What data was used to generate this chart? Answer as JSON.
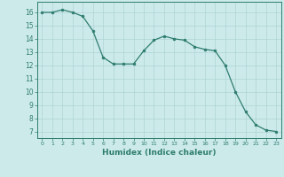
{
  "x": [
    0,
    1,
    2,
    3,
    4,
    5,
    6,
    7,
    8,
    9,
    10,
    11,
    12,
    13,
    14,
    15,
    16,
    17,
    18,
    19,
    20,
    21,
    22,
    23
  ],
  "y": [
    16.0,
    16.0,
    16.2,
    16.0,
    15.7,
    14.6,
    12.6,
    12.1,
    12.1,
    12.1,
    13.1,
    13.9,
    14.2,
    14.0,
    13.9,
    13.4,
    13.2,
    13.1,
    12.0,
    10.0,
    8.5,
    7.5,
    7.1,
    7.0
  ],
  "line_color": "#2e7d6e",
  "marker": "o",
  "marker_size": 2.0,
  "bg_color": "#cceaea",
  "grid_color": "#aed4d4",
  "xlabel": "Humidex (Indice chaleur)",
  "xlim": [
    -0.5,
    23.5
  ],
  "ylim": [
    6.5,
    16.8
  ],
  "yticks": [
    7,
    8,
    9,
    10,
    11,
    12,
    13,
    14,
    15,
    16
  ],
  "xticks": [
    0,
    1,
    2,
    3,
    4,
    5,
    6,
    7,
    8,
    9,
    10,
    11,
    12,
    13,
    14,
    15,
    16,
    17,
    18,
    19,
    20,
    21,
    22,
    23
  ]
}
